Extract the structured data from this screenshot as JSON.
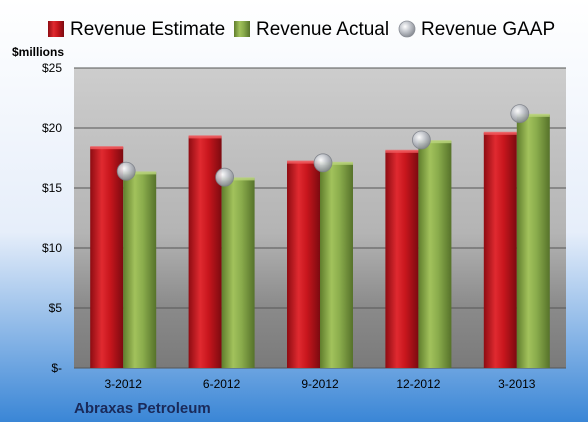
{
  "company": "Abraxas Petroleum",
  "unit_label": "$millions",
  "chart_data": {
    "type": "bar",
    "categories": [
      "3-2012",
      "6-2012",
      "9-2012",
      "12-2012",
      "3-2013"
    ],
    "series": [
      {
        "name": "Revenue Estimate",
        "values": [
          18.4,
          19.3,
          17.2,
          18.1,
          19.6
        ],
        "color": "#c0141c"
      },
      {
        "name": "Revenue Actual",
        "values": [
          16.3,
          15.8,
          17.1,
          18.9,
          21.1
        ],
        "color": "#86a84a"
      }
    ],
    "points": {
      "name": "Revenue GAAP",
      "values": [
        16.4,
        15.9,
        17.1,
        19.0,
        21.2
      ],
      "color": "#b8bcc4"
    },
    "yticks": [
      "$25",
      "$20",
      "$15",
      "$10",
      "$5",
      "$-"
    ],
    "ylim": [
      0,
      25
    ],
    "grid": true,
    "legend_position": "top"
  }
}
